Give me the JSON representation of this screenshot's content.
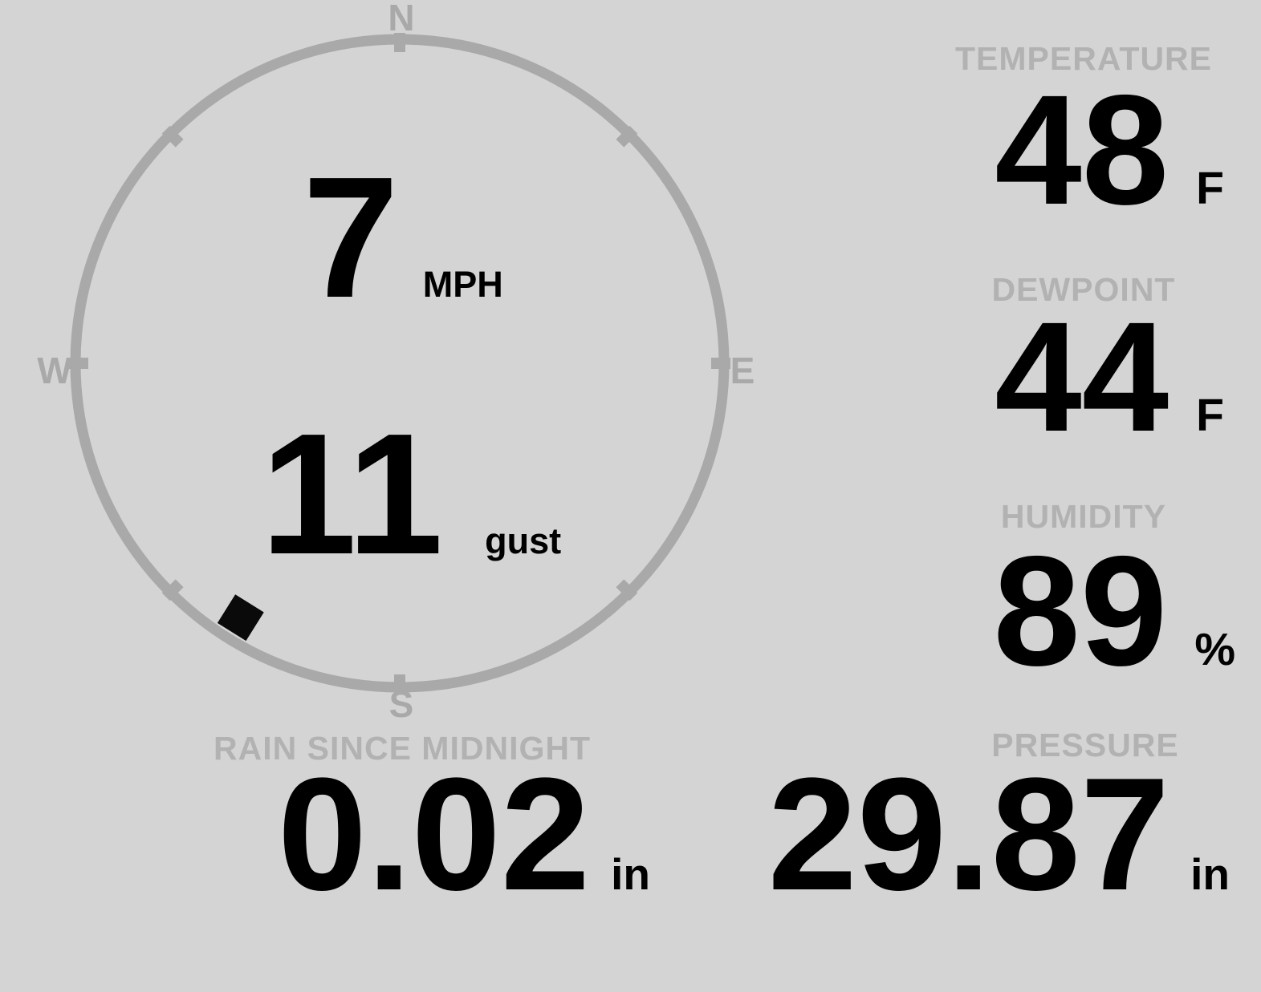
{
  "theme": {
    "background": "#d4d4d4",
    "muted_gray": "#a9a9a9",
    "label_gray": "#b2b2b2",
    "value_black": "#0a0a0a"
  },
  "wind": {
    "speed_value": "7",
    "speed_unit": "MPH",
    "gust_value": "11",
    "gust_unit": "gust",
    "compass": {
      "north": "N",
      "east": "E",
      "south": "S",
      "west": "W",
      "direction_degrees": 212
    }
  },
  "stats": {
    "temperature": {
      "label": "TEMPERATURE",
      "value": "48",
      "unit": "F"
    },
    "dewpoint": {
      "label": "DEWPOINT",
      "value": "44",
      "unit": "F"
    },
    "humidity": {
      "label": "HUMIDITY",
      "value": "89",
      "unit": "%"
    },
    "rain": {
      "label": "RAIN SINCE MIDNIGHT",
      "value": "0.02",
      "unit": "in"
    },
    "pressure": {
      "label": "PRESSURE",
      "value": "29.87",
      "unit": "in"
    }
  }
}
